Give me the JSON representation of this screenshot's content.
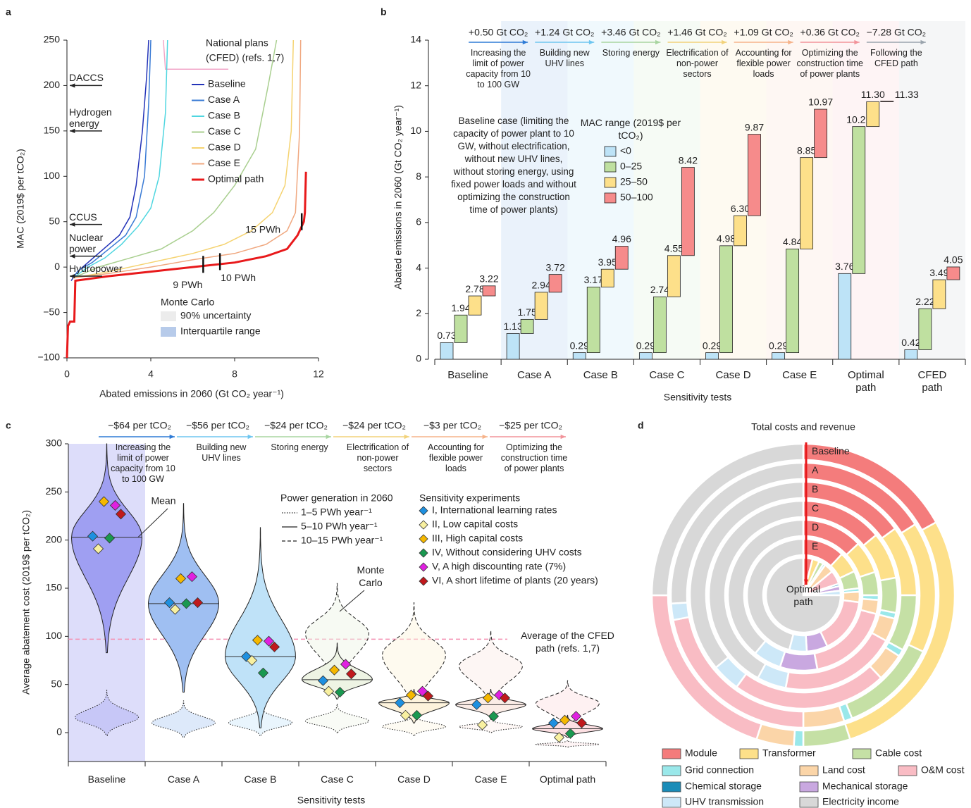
{
  "chart_data": [
    {
      "type": "line",
      "panel": "a",
      "ylabel": "MAC (2019$ per tCO₂)",
      "xlabel": "Abated emissions in 2060 (Gt CO₂ year⁻¹)",
      "xlim": [
        0,
        12
      ],
      "ylim": [
        -100,
        250
      ],
      "xticks": [
        0,
        4,
        8,
        12
      ],
      "yticks": [
        {
          "value": -100,
          "label": "−100"
        },
        {
          "value": -50,
          "label": "−50"
        },
        0,
        50,
        100,
        150,
        200,
        250
      ],
      "series": [
        {
          "name": "Baseline",
          "color": "#2333b8",
          "x": [
            0.2,
            0.5,
            1,
            1.5,
            2,
            2.5,
            3,
            3.3,
            3.6,
            3.8,
            3.9
          ],
          "y": [
            -15,
            -5,
            5,
            15,
            25,
            35,
            55,
            90,
            150,
            210,
            250
          ]
        },
        {
          "name": "Case A",
          "color": "#3a7bd5",
          "x": [
            0.25,
            0.6,
            1.2,
            2,
            2.8,
            3.3,
            3.7,
            3.9,
            4.0
          ],
          "y": [
            -12,
            -3,
            5,
            20,
            35,
            55,
            100,
            180,
            250
          ]
        },
        {
          "name": "Case B",
          "color": "#4fd6e0",
          "x": [
            0.3,
            1,
            1.8,
            2.6,
            3.4,
            4,
            4.4,
            4.7,
            4.8
          ],
          "y": [
            -12,
            0,
            10,
            25,
            45,
            65,
            100,
            170,
            250
          ]
        },
        {
          "name": "Case C",
          "color": "#a9cf8f",
          "x": [
            0.3,
            1.5,
            3,
            4.5,
            6,
            7,
            8,
            9,
            9.6,
            10
          ],
          "y": [
            -12,
            0,
            10,
            20,
            40,
            60,
            90,
            130,
            200,
            250
          ]
        },
        {
          "name": "Case D",
          "color": "#f5d371",
          "x": [
            0.3,
            2,
            4,
            6,
            7.5,
            8.8,
            9.8,
            10.4,
            10.7,
            10.8
          ],
          "y": [
            -12,
            -5,
            5,
            15,
            25,
            40,
            60,
            90,
            150,
            250
          ]
        },
        {
          "name": "Case E",
          "color": "#f0a880",
          "x": [
            0.3,
            2,
            4,
            6,
            8,
            9.5,
            10.5,
            10.9,
            11.1,
            11.15
          ],
          "y": [
            -12,
            -7,
            0,
            8,
            15,
            25,
            40,
            60,
            150,
            250
          ]
        },
        {
          "name": "Optimal path",
          "color": "#e8191b",
          "x": [
            0,
            0.05,
            0.15,
            0.35,
            0.4,
            2,
            4,
            6,
            8,
            9.5,
            10.5,
            11,
            11.3,
            11.35,
            11.4
          ],
          "y": [
            -100,
            -65,
            -60,
            -60,
            -15,
            -10,
            -5,
            0,
            5,
            12,
            20,
            35,
            50,
            60,
            105
          ]
        }
      ],
      "national_plans": {
        "label": [
          "National plans",
          "(CFED) (refs. 1,7)"
        ],
        "color": "#f2a6c8",
        "x": [
          4.6,
          4.7,
          7.7
        ],
        "y": [
          250,
          218,
          218
        ]
      },
      "technologies": [
        {
          "name": "DACCS",
          "value": 200
        },
        {
          "name": "Hydrogen energy",
          "value": 150
        },
        {
          "name": "CCUS",
          "value": 47
        },
        {
          "name": "Nuclear power",
          "value": 12
        },
        {
          "name": "Hydropower",
          "value": -10
        }
      ],
      "markers": [
        {
          "label": "9 PWh",
          "x": 6.5,
          "y": 3
        },
        {
          "label": "10 PWh",
          "x": 7.3,
          "y": 6
        },
        {
          "label": "15 PWh",
          "x": 11.2,
          "y": 50
        }
      ],
      "monte_carlo": {
        "title": "Monte Carlo",
        "items": [
          {
            "name": "90% uncertainty",
            "color": "#ececec"
          },
          {
            "name": "Interquartile range",
            "color": "#b7cbea"
          }
        ]
      }
    },
    {
      "type": "floating-bar",
      "panel": "b",
      "ylabel": "Abated emissions in 2060 (Gt CO₂ year⁻¹)",
      "xlabel": "Sensitivity tests",
      "ylim": [
        0,
        14
      ],
      "yticks": [
        0,
        2,
        4,
        6,
        8,
        10,
        12,
        14
      ],
      "categories": [
        "Baseline",
        "Case A",
        "Case B",
        "Case C",
        "Case D",
        "Case E",
        "Optimal path",
        "CFED path"
      ],
      "legend_title": "MAC range (2019$ per tCO₂)",
      "series": [
        {
          "name": "<0",
          "color": "#bde3f7",
          "values": [
            0.73,
            1.13,
            0.29,
            0.29,
            0.29,
            0.29,
            3.76,
            0.42
          ]
        },
        {
          "name": "0–25",
          "color": "#bfe0a0",
          "values": [
            1.94,
            1.75,
            3.17,
            2.74,
            4.98,
            4.84,
            10.21,
            2.22
          ]
        },
        {
          "name": "25–50",
          "color": "#fde08a",
          "values": [
            2.78,
            2.94,
            3.95,
            4.55,
            6.3,
            8.85,
            11.3,
            3.49
          ],
          "value_labels": [
            "2.78",
            "2.94",
            "3.95",
            "4.55",
            "6.30",
            "8.85",
            "11.30",
            "3.49"
          ]
        },
        {
          "name": "50–100",
          "color": "#f68b8b",
          "values": [
            3.22,
            3.72,
            4.96,
            8.42,
            9.87,
            10.97,
            11.33,
            4.05
          ]
        }
      ],
      "note": "Baseline case (limiting the capacity of power plant to 10 GW, without electrification, without new UHV lines, without storing energy, using fixed power loads and without optimizing the construction time of power plants)",
      "steps": [
        {
          "change": "+0.50 Gt CO₂",
          "text": "Increasing the limit of power capacity from 10 to 100 GW",
          "color": "#2e7bd6"
        },
        {
          "change": "+1.24 Gt CO₂",
          "text": "Building new UHV lines",
          "color": "#6ec6f0"
        },
        {
          "change": "+3.46 Gt CO₂",
          "text": "Storing energy",
          "color": "#a8d5a0"
        },
        {
          "change": "+1.46 Gt CO₂",
          "text": "Electrification of non-power sectors",
          "color": "#f2d27a"
        },
        {
          "change": "+1.09 Gt CO₂",
          "text": "Accounting for flexible power loads",
          "color": "#f6b38a"
        },
        {
          "change": "+0.36 Gt CO₂",
          "text": "Optimizing the construction time of power plants",
          "color": "#f2939a"
        },
        {
          "change": "−7.28 Gt CO₂",
          "text": "Following the CFED path",
          "color": "#9aa4ad"
        }
      ]
    },
    {
      "type": "violin",
      "panel": "c",
      "ylabel": "Average abatement cost (2019$ per tCO₂)",
      "xlabel": "Sensitivity tests",
      "ylim": [
        -30,
        300
      ],
      "yticks": [
        0,
        50,
        100,
        150,
        200,
        250,
        300
      ],
      "categories": [
        "Baseline",
        "Case A",
        "Case B",
        "Case C",
        "Case D",
        "Case E",
        "Optimal path"
      ],
      "colors": [
        "#9f9ff2",
        "#9fbff2",
        "#bfe2f8",
        "#eef4e4",
        "#fdf3dc",
        "#fbece6",
        "#fcdfe2"
      ],
      "means": [
        203,
        134,
        79,
        55,
        31,
        29,
        4
      ],
      "ranges": {
        "solid": [
          [
            83,
            300
          ],
          [
            42,
            238
          ],
          [
            5,
            213
          ],
          [
            35,
            93
          ],
          [
            10,
            45
          ],
          [
            15,
            45
          ],
          [
            -5,
            18
          ]
        ],
        "dotted": [
          [
            -3,
            44
          ],
          [
            -5,
            33
          ],
          [
            -3,
            30
          ],
          [
            0,
            30
          ],
          [
            -3,
            20
          ],
          [
            0,
            15
          ],
          [
            -15,
            -8
          ]
        ],
        "dashed": [
          null,
          null,
          null,
          [
            40,
            155
          ],
          [
            15,
            135
          ],
          [
            25,
            106
          ],
          [
            2,
            54
          ]
        ]
      },
      "mean_label": "Mean",
      "monte_carlo_label": "Monte Carlo",
      "cfed": {
        "value": 97,
        "label": "Average of the CFED path (refs. 1,7)"
      },
      "steps": [
        {
          "change": "−$64 per tCO₂",
          "text": "Increasing the limit of power capacity from 10 to 100 GW",
          "color": "#2e7bd6"
        },
        {
          "change": "−$56 per tCO₂",
          "text": "Building new UHV lines",
          "color": "#6ec6f0"
        },
        {
          "change": "−$24 per tCO₂",
          "text": "Storing energy",
          "color": "#a8d5a0"
        },
        {
          "change": "−$24 per tCO₂",
          "text": "Electrification of non-power sectors",
          "color": "#f2d27a"
        },
        {
          "change": "−$3 per tCO₂",
          "text": "Accounting for flexible power loads",
          "color": "#f6b38a"
        },
        {
          "change": "−$25 per tCO₂",
          "text": "Optimizing the construction time of power plants",
          "color": "#f2939a"
        }
      ],
      "power_legend": {
        "title": "Power generation in 2060",
        "items": [
          {
            "name": "1–5 PWh year⁻¹",
            "style": "dotted"
          },
          {
            "name": "5–10 PWh year⁻¹",
            "style": "solid"
          },
          {
            "name": "10–15 PWh year⁻¹",
            "style": "dashed"
          }
        ]
      },
      "experiments_title": "Sensitivity experiments",
      "experiments": [
        {
          "name": "I, International learning rates",
          "color": "#1e90e0",
          "values": [
            204,
            135,
            79,
            54,
            31,
            29,
            10
          ]
        },
        {
          "name": "II, Low capital costs",
          "color": "#f8f0a0",
          "values": [
            191,
            128,
            75,
            43,
            18,
            8,
            -5
          ]
        },
        {
          "name": "III, High capital costs",
          "color": "#f5b800",
          "values": [
            240,
            160,
            96,
            65,
            39,
            36,
            13
          ]
        },
        {
          "name": "IV, Without considering UHV costs",
          "color": "#1a9850",
          "values": [
            202,
            134,
            62,
            42,
            18,
            17,
            -1
          ]
        },
        {
          "name": "V, A high discounting rate (7%)",
          "color": "#e020e0",
          "values": [
            236,
            162,
            95,
            71,
            43,
            39,
            17
          ]
        },
        {
          "name": "VI, A short lifetime of plants (20 years)",
          "color": "#c0191c",
          "values": [
            227,
            135,
            89,
            61,
            38,
            36,
            10
          ]
        }
      ]
    },
    {
      "type": "sunburst",
      "panel": "d",
      "title": "Total costs and revenue",
      "rings": [
        "Baseline",
        "A",
        "B",
        "C",
        "D",
        "E",
        "Optimal path"
      ],
      "series": [
        {
          "name": "Module",
          "color": "#f47c7c",
          "values": [
            17,
            16,
            15,
            14,
            13,
            12,
            4
          ]
        },
        {
          "name": "Transformer",
          "color": "#fde08a",
          "values": [
            28,
            16,
            10,
            8,
            7,
            6,
            3
          ]
        },
        {
          "name": "Cable cost",
          "color": "#c5e0a5",
          "values": [
            5,
            12,
            8,
            6,
            5,
            5,
            2
          ]
        },
        {
          "name": "Grid connection",
          "color": "#9ae8ea",
          "values": [
            1,
            1,
            1,
            1,
            1,
            1,
            1
          ]
        },
        {
          "name": "Land cost",
          "color": "#fbd5a8",
          "values": [
            4,
            5,
            4,
            4,
            3,
            3,
            4
          ]
        },
        {
          "name": "O&M cost",
          "color": "#f9bcc4",
          "values": [
            20,
            22,
            22,
            20,
            18,
            16,
            6
          ]
        },
        {
          "name": "Chemical storage",
          "color": "#1a8cb8",
          "values": [
            0,
            0,
            0,
            0,
            0,
            0,
            1
          ]
        },
        {
          "name": "Mechanical storage",
          "color": "#c9a8e0",
          "values": [
            0,
            0,
            0,
            0,
            8,
            6,
            2
          ]
        },
        {
          "name": "UHV transmission",
          "color": "#cde8f8",
          "values": [
            0,
            2,
            4,
            5,
            6,
            5,
            2
          ]
        },
        {
          "name": "Electricity income",
          "color": "#d8d8d8",
          "values": [
            25,
            26,
            36,
            42,
            39,
            46,
            75
          ]
        }
      ]
    }
  ]
}
